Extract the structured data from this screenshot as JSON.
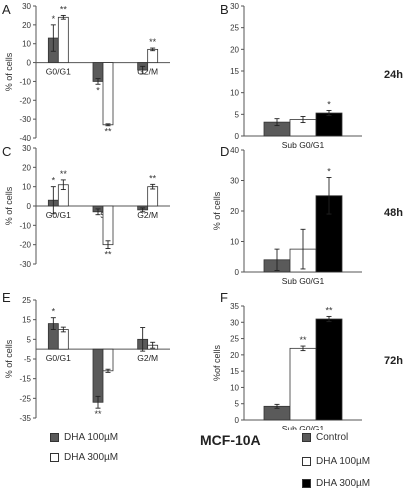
{
  "chart_data": [
    {
      "type": "bar",
      "panel_label": "A",
      "categories": [
        "G0/G1",
        "S",
        "G2/M"
      ],
      "series": [
        {
          "name": "DHA 100µM",
          "values": [
            13,
            -10,
            -4
          ],
          "errors": [
            7,
            1.5,
            2
          ],
          "marks": [
            "*",
            "*",
            ""
          ]
        },
        {
          "name": "DHA 300µM",
          "values": [
            24,
            -33,
            7
          ],
          "errors": [
            1,
            0.5,
            0.7
          ],
          "marks": [
            "**",
            "**",
            "**"
          ]
        }
      ],
      "ylabel": "% of cells",
      "yticks": [
        "-40",
        "-30",
        "-20",
        "-10",
        "0",
        "10",
        "20",
        "30"
      ],
      "ylim": [
        -40,
        30
      ],
      "time_label": ""
    },
    {
      "type": "bar",
      "panel_label": "B",
      "categories": [
        "Sub G0/G1"
      ],
      "series": [
        {
          "name": "Control",
          "values": [
            3.2
          ],
          "errors": [
            0.8
          ],
          "marks": [
            ""
          ]
        },
        {
          "name": "DHA 100µM",
          "values": [
            3.8
          ],
          "errors": [
            0.7
          ],
          "marks": [
            ""
          ]
        },
        {
          "name": "DHA 300µM",
          "values": [
            5.3
          ],
          "errors": [
            0.6
          ],
          "marks": [
            "*"
          ]
        }
      ],
      "ylabel": "",
      "yticks": [
        "0",
        "5",
        "10",
        "15",
        "20",
        "25",
        "30"
      ],
      "ylim": [
        0,
        30
      ],
      "time_label": "24h"
    },
    {
      "type": "bar",
      "panel_label": "C",
      "categories": [
        "G0/G1",
        "S",
        "G2/M"
      ],
      "series": [
        {
          "name": "DHA 100µM",
          "values": [
            3,
            -3,
            -2
          ],
          "errors": [
            7,
            1.5,
            1
          ],
          "marks": [
            "*",
            "",
            ""
          ]
        },
        {
          "name": "DHA 300µM",
          "values": [
            11,
            -20,
            10
          ],
          "errors": [
            2.5,
            2,
            1.2
          ],
          "marks": [
            "**",
            "**",
            "**"
          ]
        }
      ],
      "ylabel": "% of cells",
      "yticks": [
        "-30",
        "-20",
        "-10",
        "0",
        "10",
        "20",
        "30"
      ],
      "ylim": [
        -30,
        30
      ],
      "time_label": ""
    },
    {
      "type": "bar",
      "panel_label": "D",
      "categories": [
        "Sub G0/G1"
      ],
      "series": [
        {
          "name": "Control",
          "values": [
            4
          ],
          "errors": [
            3.5
          ],
          "marks": [
            ""
          ]
        },
        {
          "name": "DHA 100µM",
          "values": [
            7.5
          ],
          "errors": [
            6.5
          ],
          "marks": [
            ""
          ]
        },
        {
          "name": "DHA 300µM",
          "values": [
            25
          ],
          "errors": [
            6
          ],
          "marks": [
            "*"
          ]
        }
      ],
      "ylabel": "% of cells",
      "yticks": [
        "0",
        "10",
        "20",
        "30",
        "40"
      ],
      "ylim": [
        0,
        40
      ],
      "time_label": "48h"
    },
    {
      "type": "bar",
      "panel_label": "E",
      "categories": [
        "G0/G1",
        "S",
        "G2/M"
      ],
      "series": [
        {
          "name": "DHA 100µM",
          "values": [
            13,
            -27,
            5
          ],
          "errors": [
            3,
            3,
            6
          ],
          "marks": [
            "*",
            "**",
            ""
          ]
        },
        {
          "name": "DHA 300µM",
          "values": [
            10,
            -11,
            2
          ],
          "errors": [
            1.2,
            0.8,
            1.5
          ],
          "marks": [
            "",
            "",
            ""
          ]
        }
      ],
      "ylabel": "% of cells",
      "yticks": [
        "-35",
        "-25",
        "-15",
        "-5",
        "5",
        "15",
        "25"
      ],
      "ylim": [
        -35,
        25
      ],
      "time_label": ""
    },
    {
      "type": "bar",
      "panel_label": "F",
      "categories": [
        "Sub G0/G1"
      ],
      "series": [
        {
          "name": "Control",
          "values": [
            4.2
          ],
          "errors": [
            0.6
          ],
          "marks": [
            ""
          ]
        },
        {
          "name": "DHA 100µM",
          "values": [
            22
          ],
          "errors": [
            0.7
          ],
          "marks": [
            "**"
          ]
        },
        {
          "name": "DHA 300µM",
          "values": [
            31
          ],
          "errors": [
            0.8
          ],
          "marks": [
            "**"
          ]
        }
      ],
      "ylabel": "%of cells",
      "yticks": [
        "0",
        "5",
        "10",
        "15",
        "20",
        "25",
        "30",
        "35"
      ],
      "ylim": [
        0,
        35
      ],
      "time_label": "72h"
    }
  ],
  "colors": {
    "Control": "#5a5a5a",
    "DHA 100µM": "#5a5a5a",
    "DHA 300µM": "#ffffff",
    "DHA 300µM_right": "#000000"
  },
  "legend_left": [
    {
      "label": "DHA 100µM",
      "color": "#5a5a5a"
    },
    {
      "label": "DHA 300µM",
      "color": "#ffffff"
    }
  ],
  "legend_right": [
    {
      "label": "Control",
      "color": "#5a5a5a"
    },
    {
      "label": "DHA 100µM",
      "color": "#ffffff"
    },
    {
      "label": "DHA 300µM",
      "color": "#000000"
    }
  ],
  "cell_line": "MCF-10A"
}
